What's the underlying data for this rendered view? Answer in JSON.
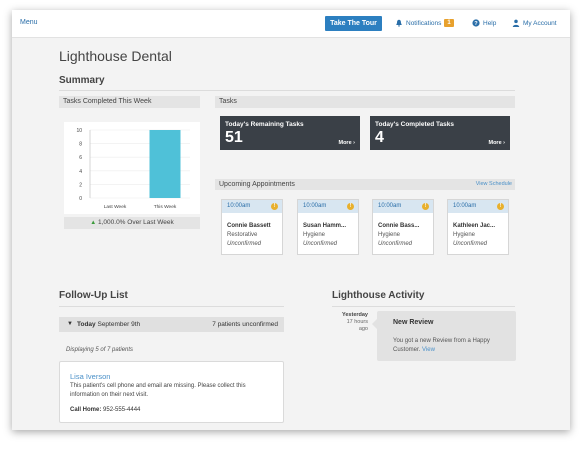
{
  "topbar": {
    "menu": "Menu",
    "tour_button": "Take The Tour",
    "notifications_label": "Notifications",
    "notifications_count": "1",
    "help_label": "Help",
    "account_label": "My Account"
  },
  "page_title": "Lighthouse Dental",
  "summary": {
    "title": "Summary",
    "tasks_completed_header": "Tasks Completed This Week",
    "chart_footer": "1,000.0% Over Last Week",
    "tasks_header": "Tasks",
    "remaining": {
      "label": "Today's Remaining Tasks",
      "value": "51",
      "more": "More"
    },
    "completed": {
      "label": "Today's Completed Tasks",
      "value": "4",
      "more": "More"
    }
  },
  "chart_data": {
    "type": "bar",
    "categories": [
      "Last Week",
      "This Week"
    ],
    "values": [
      0,
      10
    ],
    "title": "Tasks Completed This Week",
    "ylim": [
      0,
      10
    ],
    "yticks": [
      0,
      2,
      4,
      6,
      8,
      10
    ],
    "colors": [
      "#4fc1d8"
    ]
  },
  "appointments": {
    "header": "Upcoming Appointments",
    "view_schedule": "View Schedule",
    "items": [
      {
        "time": "10:00am",
        "name": "Connie Bassett",
        "type": "Restorative",
        "status": "Unconfirmed"
      },
      {
        "time": "10:00am",
        "name": "Susan Hamm...",
        "type": "Hygiene",
        "status": "Unconfirmed"
      },
      {
        "time": "10:00am",
        "name": "Connie Bass...",
        "type": "Hygiene",
        "status": "Unconfirmed"
      },
      {
        "time": "10:00am",
        "name": "Kathleen Jac...",
        "type": "Hygiene",
        "status": "Unconfirmed"
      }
    ]
  },
  "followup": {
    "title": "Follow-Up List",
    "day_label": "Today",
    "date": "September 9th",
    "unconfirmed": "7 patients unconfirmed",
    "displaying": "Displaying 5 of 7 patients",
    "patient": {
      "name": "Lisa Iverson",
      "message": "This patient's cell phone and email are missing. Please collect this information on their next visit.",
      "phone_label": "Call Home:",
      "phone": "952-555-4444"
    }
  },
  "activity": {
    "title": "Lighthouse Activity",
    "time_day": "Yesterday",
    "time_ago_1": "17 hours",
    "time_ago_2": "ago",
    "card_title": "New Review",
    "card_text": "You got a new Review from a Happy Customer.",
    "card_link": "View"
  }
}
